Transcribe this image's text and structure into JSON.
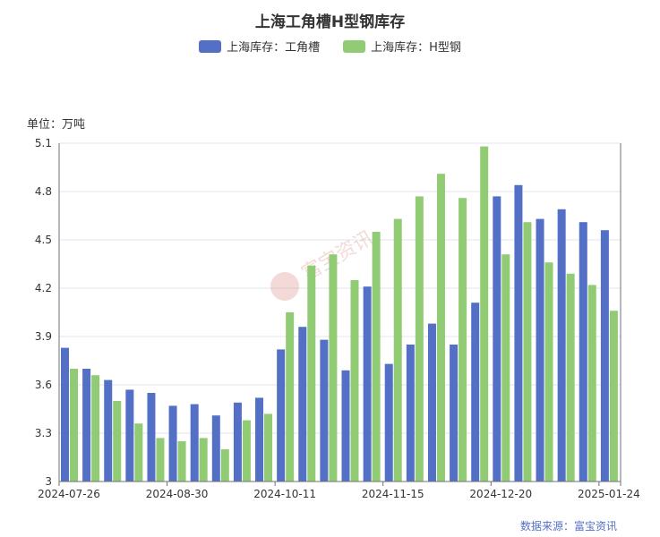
{
  "chart_data": {
    "type": "bar",
    "title": "上海工角槽H型钢库存",
    "unit": "单位：万吨",
    "source": "数据来源：富宝资讯",
    "watermark": "富宝资讯",
    "ylim": [
      3,
      5.1
    ],
    "yticks": [
      "3",
      "3.3",
      "3.6",
      "3.9",
      "4.2",
      "4.5",
      "4.8",
      "5.1"
    ],
    "xtick_labels": [
      {
        "index": 0,
        "label": "2024-07-26"
      },
      {
        "index": 5,
        "label": "2024-08-30"
      },
      {
        "index": 10,
        "label": "2024-10-11"
      },
      {
        "index": 15,
        "label": "2024-11-15"
      },
      {
        "index": 20,
        "label": "2024-12-20"
      },
      {
        "index": 25,
        "label": "2025-01-24"
      }
    ],
    "series": [
      {
        "name": "上海库存：工角槽",
        "color": "#5470c6",
        "values": [
          3.83,
          3.7,
          3.63,
          3.57,
          3.55,
          3.47,
          3.48,
          3.41,
          3.49,
          3.52,
          3.82,
          3.96,
          3.88,
          3.69,
          4.21,
          3.73,
          3.85,
          3.98,
          3.85,
          4.11,
          4.77,
          4.84,
          4.63,
          4.69,
          4.61,
          4.56
        ]
      },
      {
        "name": "上海库存：H型钢",
        "color": "#91cc75",
        "values": [
          3.7,
          3.66,
          3.5,
          3.36,
          3.27,
          3.25,
          3.27,
          3.2,
          3.38,
          3.42,
          4.05,
          4.34,
          4.41,
          4.25,
          4.55,
          4.63,
          4.77,
          4.91,
          4.76,
          5.08,
          4.41,
          4.61,
          4.36,
          4.29,
          4.22,
          4.06
        ]
      }
    ]
  }
}
